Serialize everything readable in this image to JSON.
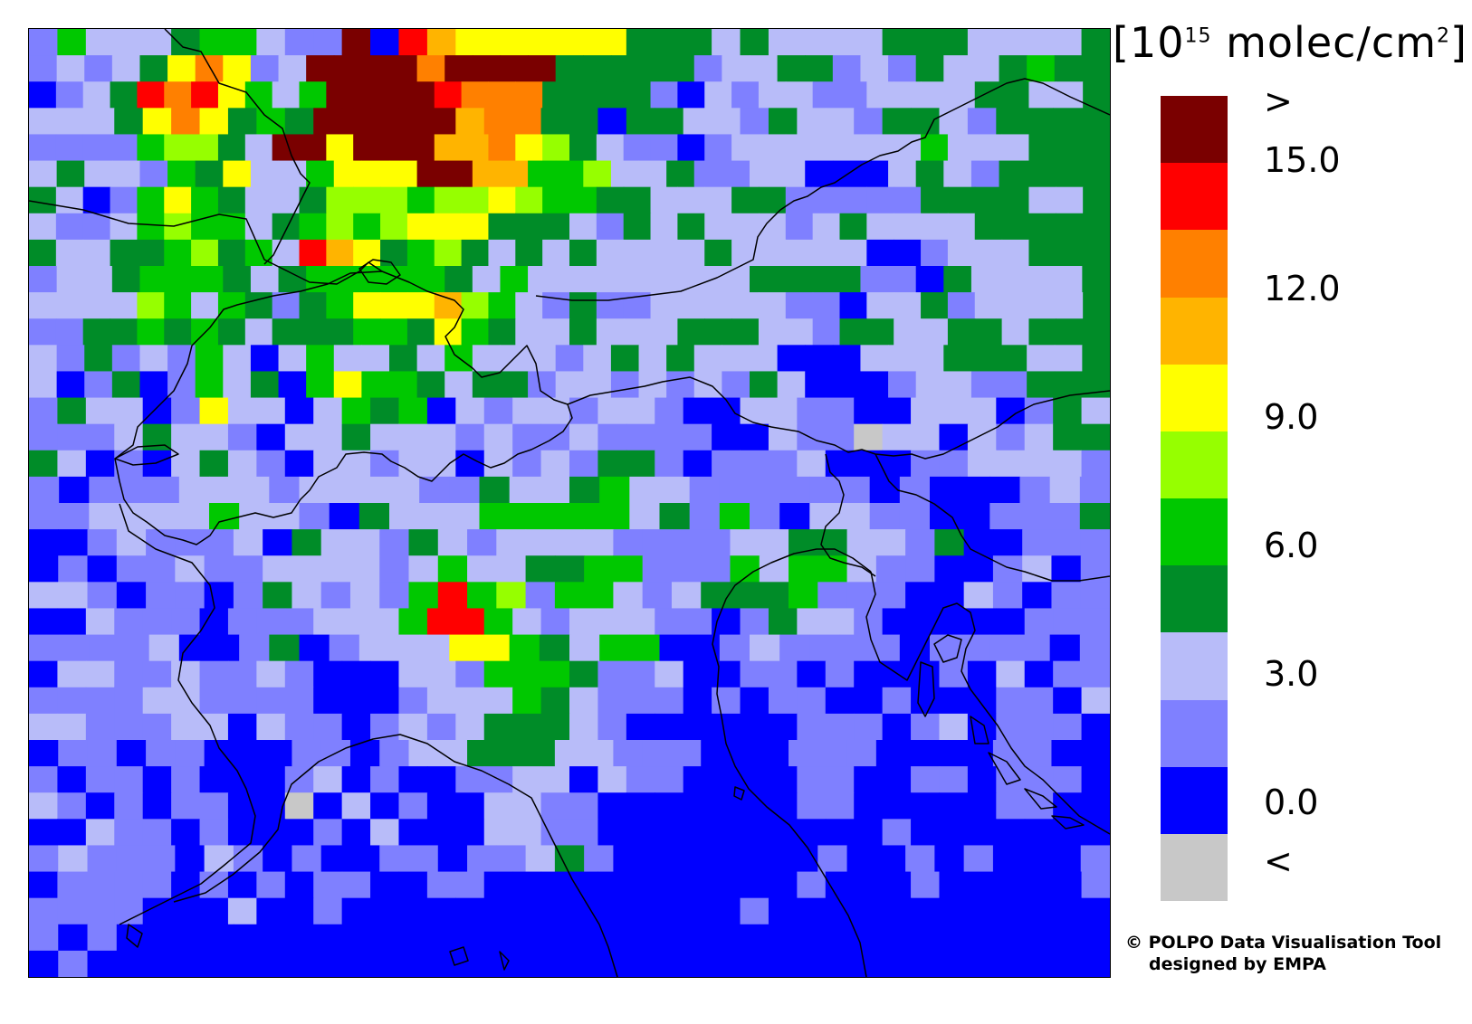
{
  "legend": {
    "title_prefix": "[10",
    "title_exp": "15",
    "title_unit": " molec/cm",
    "title_unit_exp": "2",
    "title_suffix": "]",
    "colors": [
      "#7a0000",
      "#ff0000",
      "#ff8000",
      "#ffb400",
      "#ffff00",
      "#96ff00",
      "#00c800",
      "#008c28",
      "#b8bcf9",
      "#7f80ff",
      "#0000ff",
      "#c8c8c8"
    ],
    "labels": [
      ">",
      "15.0",
      "12.0",
      "9.0",
      "6.0",
      "3.0",
      "0.0",
      "<"
    ]
  },
  "credit": {
    "line1": "© POLPO Data Visualisation Tool",
    "line2": "designed by EMPA"
  },
  "map": {
    "colormap": {
      "0": "#c8c8c8",
      "1": "#0000ff",
      "2": "#7f80ff",
      "3": "#b8bcf9",
      "4": "#008c28",
      "5": "#00c800",
      "6": "#96ff00",
      "7": "#ffff00",
      "8": "#ffb400",
      "9": "#ff8000",
      "A": "#ff0000",
      "B": "#7a0000"
    },
    "grid": [
      "25333455322B1A877777744434333344433334",
      "2323479723BBBB9BBBB44444233442324334544",
      "1234A9A7535BBBBA999444421323322333344334",
      "3334797454BBBBB89944144332433244324444",
      "222256643BB7BBB8897643221233333335333444",
      "34332547335777BB88556334223311134324444",
      "4312575433466656676554433344222224444334",
      "3223565534565677744432434333234333344444",
      "4334456453A87456434343333433333112333444",
      "233455543455555435333333334444221433334",
      "3333653542457778653242233333221334233334",
      "2244545434445547543343334443324433443444",
      "324232531353343533323434333111333444334",
      "312412534157554344233232324311123322444",
      "24331273313545132332332113322113331243",
      "22234332133433323223222211322033132344",
      "43121343213323313232442122231112233332",
      "212223332333322433453322222212111232",
      "223333533214333555553425213322112224",
      "1123222314332432333322223344332411222",
      "1212232233332353344552225355322112312",
      "33212212432325A5625532344452221132122",
      "11322212223335AA5323332212433211111222",
      "222231124123337754355112322221222212",
      "13322322321113325554223112212111213122",
      "22223322221112333543222121221121112213",
      "33222331322123234443211111122212312221",
      "1221221112212334443322211122211112211",
      "21221211123121122331322111122112212221",
      "32121221101312113322111111122111112211",
      "11322121112131113322111111111121111111",
      "2322213212112212234211111112112121112",
      "12222121212211221111111111121112111112",
      "22221113112111111111111112111111111111",
      "2121111111111111111111111111111111111",
      "1211111111111111111111111111111111111"
    ]
  }
}
